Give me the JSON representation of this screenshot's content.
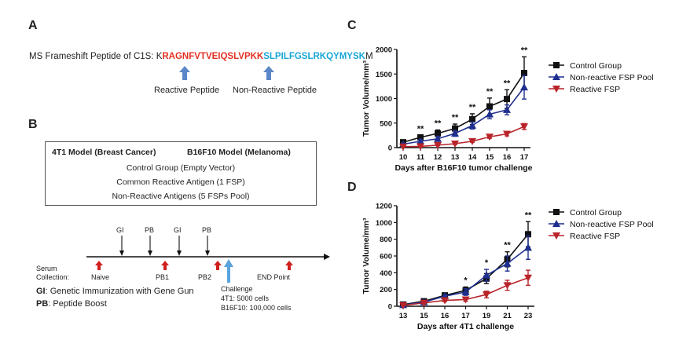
{
  "panelA": {
    "letter": "A",
    "seq_prefix": "MS Frameshift Peptide of C1S: K",
    "seq_red": "RAGNFVTVEIQSLVPKK",
    "seq_cyan": "SLPILFGSLRKQYMYSK",
    "seq_suffix": "M",
    "reactive_label": "Reactive Peptide",
    "nonreactive_label": "Non-Reactive Peptide"
  },
  "panelB": {
    "letter": "B",
    "model1": "4T1 Model (Breast Cancer)",
    "model2": "B16F10 Model (Melanoma)",
    "group1": "Control Group (Empty Vector)",
    "group2": "Common Reactive Antigen (1 FSP)",
    "group3": "Non-Reactive Antigens (5 FSPs Pool)",
    "top_labels": [
      "GI",
      "PB",
      "GI",
      "PB"
    ],
    "serum_label_1": "Serum",
    "serum_label_2": "Collection:",
    "bottom_labels": [
      "Naive",
      "PB1",
      "PB2",
      "END Point"
    ],
    "challenge": [
      "Challenge",
      "4T1: 5000 cells",
      "B16F10: 100,000 cells"
    ],
    "legend_gi_key": "GI",
    "legend_gi_text": ": Genetic Immunization with Gene Gun",
    "legend_pb_key": "PB",
    "legend_pb_text": ": Peptide Boost",
    "colors": {
      "arrow_red": "#d0211f",
      "arrow_blue": "#5aa3dd"
    }
  },
  "chart_data": [
    {
      "letter": "C",
      "type": "line",
      "xlabel": "Days after B16F10 tumor challenge",
      "ylabel": "Tumor Volume/mm³",
      "categories": [
        "10",
        "11",
        "12",
        "13",
        "14",
        "15",
        "16",
        "17"
      ],
      "ylim": [
        0,
        2000
      ],
      "yticks": [
        "0",
        "500",
        "1000",
        "1500",
        "2000"
      ],
      "legend_position": "top-right",
      "significance": [
        "",
        "**",
        "**",
        "**",
        "**",
        "**",
        "**",
        "**"
      ],
      "series": [
        {
          "name": "Control Group",
          "color": "#111111",
          "marker": "square",
          "values": [
            110,
            210,
            290,
            390,
            580,
            840,
            990,
            1520
          ],
          "errors": [
            30,
            40,
            70,
            90,
            110,
            170,
            190,
            330
          ]
        },
        {
          "name": "Non-reactive FSP Pool",
          "color": "#1f2f8f",
          "marker": "triangle-up",
          "values": [
            70,
            130,
            180,
            290,
            450,
            680,
            770,
            1230
          ],
          "errors": [
            20,
            30,
            50,
            60,
            70,
            90,
            100,
            240
          ]
        },
        {
          "name": "Reactive FSP",
          "color": "#b8242a",
          "marker": "triangle-down",
          "values": [
            20,
            25,
            50,
            80,
            130,
            220,
            280,
            430
          ],
          "errors": [
            5,
            8,
            10,
            15,
            20,
            30,
            40,
            60
          ]
        }
      ]
    },
    {
      "letter": "D",
      "type": "line",
      "xlabel": "Days after 4T1 challenge",
      "ylabel": "Tumor Volume/mm³",
      "categories": [
        "13",
        "15",
        "16",
        "17",
        "19",
        "21",
        "23"
      ],
      "ylim": [
        0,
        1200
      ],
      "yticks": [
        "0",
        "200",
        "400",
        "600",
        "800",
        "1000",
        "1200"
      ],
      "legend_position": "top-right",
      "significance": [
        "",
        "",
        "",
        "*",
        "*",
        "**",
        "**"
      ],
      "series": [
        {
          "name": "Control Group",
          "color": "#111111",
          "marker": "square",
          "values": [
            20,
            60,
            130,
            190,
            330,
            560,
            860
          ],
          "errors": [
            5,
            10,
            20,
            40,
            60,
            90,
            150
          ]
        },
        {
          "name": "Non-reactive FSP Pool",
          "color": "#1f2f8f",
          "marker": "triangle-up",
          "values": [
            15,
            50,
            120,
            170,
            370,
            510,
            700
          ],
          "errors": [
            5,
            10,
            20,
            40,
            70,
            90,
            140
          ]
        },
        {
          "name": "Reactive FSP",
          "color": "#b8242a",
          "marker": "triangle-down",
          "values": [
            10,
            40,
            70,
            80,
            140,
            250,
            340
          ],
          "errors": [
            3,
            10,
            15,
            20,
            40,
            60,
            90
          ]
        }
      ]
    }
  ]
}
